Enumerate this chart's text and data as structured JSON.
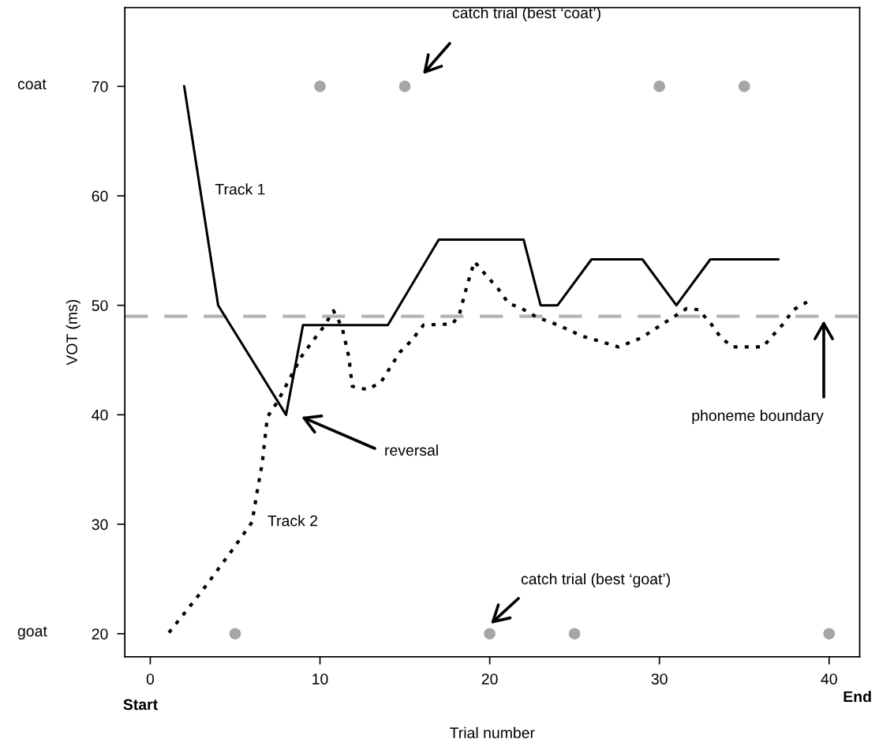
{
  "chart_data": {
    "type": "line",
    "xlabel": "Trial number",
    "ylabel": "VOT (ms)",
    "xlim": [
      -1.5,
      41.8
    ],
    "ylim": [
      17.9,
      77.2
    ],
    "xticks": [
      0,
      10,
      20,
      30,
      40
    ],
    "yticks": [
      20,
      30,
      40,
      50,
      60,
      70
    ],
    "grid": false,
    "legend": false,
    "series": [
      {
        "name": "Track 1",
        "color": "#000000",
        "line_style": "solid",
        "marker": "none",
        "x": [
          2,
          4,
          8,
          9,
          14,
          17,
          22,
          23,
          24,
          26,
          29,
          31,
          33,
          37
        ],
        "values": [
          70,
          50,
          40,
          48.2,
          48.2,
          56,
          56,
          50,
          50,
          54.2,
          54.2,
          50,
          54.2,
          54.2
        ]
      },
      {
        "name": "Track 2",
        "color": "#000000",
        "line_style": "dotted",
        "marker": "none",
        "x": [
          1.1,
          3.1,
          4.9,
          6.0,
          6.3,
          6.6,
          6.9,
          7.5,
          8.9,
          9.6,
          10.2,
          10.8,
          11.3,
          11.7,
          11.9,
          12.8,
          13.6,
          14.7,
          15.4,
          16.1,
          17.8,
          18.2,
          18.7,
          19.1,
          19.7,
          20.5,
          21.1,
          21.9,
          22.8,
          23.7,
          24.6,
          25.4,
          26.3,
          27.6,
          28.9,
          29.8,
          30.7,
          31.6,
          32.3,
          33.0,
          33.6,
          34.3,
          36.1,
          36.6,
          37.3,
          37.9,
          38.7
        ],
        "values": [
          20.1,
          24,
          27.8,
          30.2,
          33,
          35.6,
          39.8,
          41.2,
          45.3,
          46.8,
          48,
          49.5,
          48,
          45.3,
          42.6,
          42.3,
          43,
          45.7,
          46.8,
          48.2,
          48.3,
          49.1,
          52,
          54,
          52.9,
          51.5,
          50.2,
          49.7,
          48.9,
          48.4,
          47.8,
          47.2,
          46.8,
          46.2,
          47,
          47.9,
          48.8,
          49.7,
          49.6,
          48.4,
          47.1,
          46.2,
          46.2,
          47.1,
          48.3,
          49.6,
          50.3
        ]
      },
      {
        "type": "scatter",
        "color": "#a6a6a6",
        "marker": "circle",
        "x": [
          10,
          15,
          30,
          35
        ],
        "values": [
          70,
          70,
          70,
          70
        ]
      },
      {
        "type": "scatter",
        "color": "#a6a6a6",
        "marker": "circle",
        "x": [
          5,
          20,
          25,
          40
        ],
        "values": [
          20,
          20,
          20,
          20
        ]
      }
    ],
    "ref_lines": [
      {
        "axis": "y",
        "value": 49,
        "color": "#b4b4b4",
        "line_style": "dashed"
      }
    ],
    "annotations": [
      "catch trial (best ‘coat’)",
      "reversal",
      "phoneme boundary",
      "catch trial (best ‘goat’)",
      "coat",
      "goat",
      "Start",
      "End"
    ]
  }
}
